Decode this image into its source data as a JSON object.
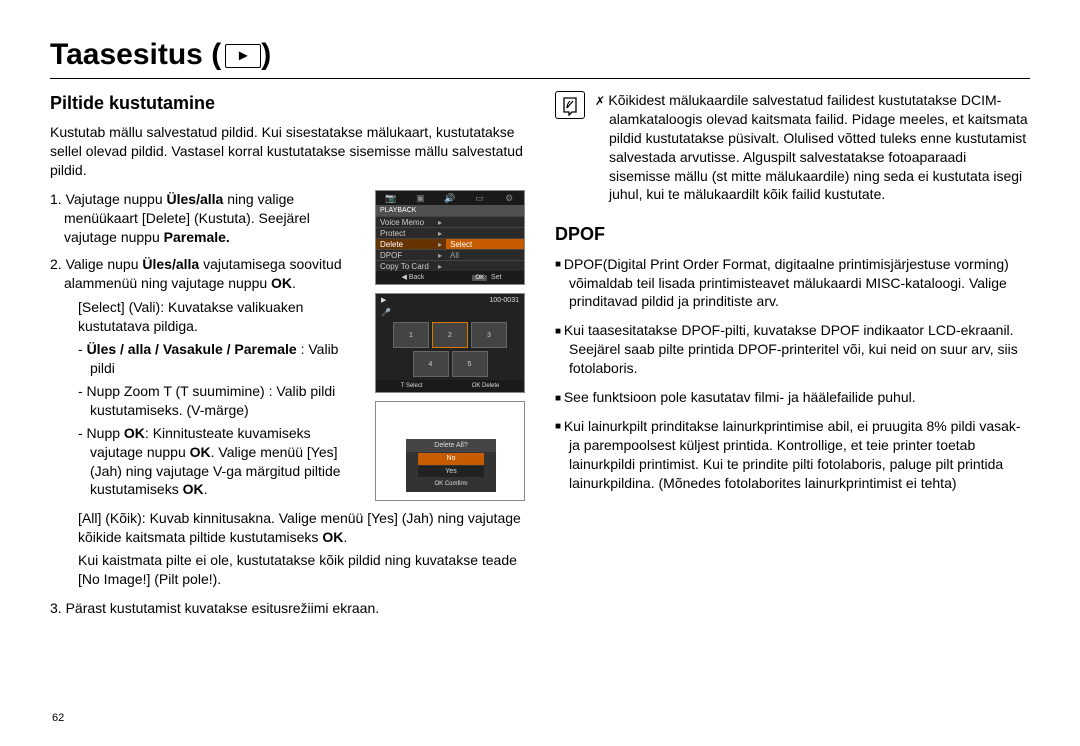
{
  "page": {
    "title": "Taasesitus (",
    "title_close": ")",
    "page_number": "62"
  },
  "left": {
    "heading": "Piltide kustutamine",
    "intro": "Kustutab mällu salvestatud pildid. Kui sisestatakse mälukaart, kustutatakse sellel olevad pildid. Vastasel korral kustutatakse sisemisse mällu salvestatud pildid.",
    "step1_a": "1. Vajutage nuppu ",
    "step1_b": "Üles/alla",
    "step1_c": " ning valige menüükaart [Delete] (Kustuta). Seejärel vajutage nuppu ",
    "step1_d": "Paremale.",
    "step2_a": "2. Valige nupu ",
    "step2_b": "Üles/alla",
    "step2_c": " vajutamisega soovitud alammenüü ning vajutage nuppu ",
    "step2_d": "OK",
    "step2_e": ".",
    "select_label": "[Select] (Vali): Kuvatakse valikuaken kustutatava pildiga.",
    "dash1_a": "-  ",
    "dash1_b": "Üles / alla / Vasakule / Paremale",
    "dash1_c": " : Valib pildi",
    "dash2": "-  Nupp Zoom T (T suumimine) : Valib pildi kustutamiseks. (V-märge)",
    "dash3_a": "-  Nupp ",
    "dash3_b": "OK",
    "dash3_c": ": Kinnitusteate kuvamiseks vajutage nuppu ",
    "dash3_d": "OK",
    "dash3_e": ". Valige menüü [Yes] (Jah) ning vajutage V-ga märgitud piltide kustutamiseks ",
    "dash3_f": "OK",
    "dash3_g": ".",
    "all_label_a": "[All] (Kõik): Kuvab kinnitusakna. Valige menüü [Yes] (Jah) ning vajutage kõikide kaitsmata piltide kustutamiseks ",
    "all_label_b": "OK",
    "all_label_c": ".",
    "all_note": "Kui kaistmata pilte ei ole, kustutatakse kõik pildid ning kuvatakse teade [No Image!] (Pilt pole!).",
    "step3": "3. Pärast kustutamist kuvatakse esitusrežiimi ekraan."
  },
  "shot1": {
    "header": "PLAYBACK",
    "rows": [
      {
        "l": "Voice Memo",
        "r": ""
      },
      {
        "l": "Protect",
        "r": ""
      },
      {
        "l": "Delete",
        "r": "Select",
        "sel": true
      },
      {
        "l": "DPOF",
        "r": "All"
      },
      {
        "l": "Copy To Card",
        "r": ""
      }
    ],
    "foot_back": "Back",
    "foot_set": "Set",
    "foot_ok": "OK"
  },
  "shot2": {
    "counter": "100-0031",
    "foot_select_key": "T",
    "foot_select": "Select",
    "foot_delete_key": "OK",
    "foot_delete": "Delete",
    "thumbs": [
      "1",
      "2",
      "3",
      "4",
      "5"
    ]
  },
  "shot3": {
    "dialog_title": "Delete All?",
    "opt_no": "No",
    "opt_yes": "Yes",
    "foot_key": "OK",
    "foot_label": "Comfirm"
  },
  "right": {
    "note": "Kõikidest mälukaardile salvestatud failidest kustutatakse DCIM-alamkataloogis olevad kaitsmata failid. Pidage meeles, et kaitsmata pildid kustutatakse püsivalt. Olulised võtted tuleks enne kustutamist salvestada arvutisse. Alguspilt salvestatakse fotoaparaadi sisemisse mällu (st mitte mälukaardile) ning seda ei kustutata isegi juhul, kui te mälukaardilt kõik failid kustutate.",
    "heading": "DPOF",
    "p1": "DPOF(Digital Print Order Format, digitaalne printimisjärjestuse vorming) võimaldab teil lisada printimisteavet mälukaardi MISC-kataloogi. Valige prinditavad pildid ja prinditiste arv.",
    "p2": "Kui taasesitatakse DPOF-pilti, kuvatakse DPOF indikaator LCD-ekraanil. Seejärel saab pilte printida DPOF-printeritel või, kui neid on suur arv, siis fotolaboris.",
    "p3": "See funktsioon pole kasutatav filmi- ja häälefailide puhul.",
    "p4": "Kui lainurkpilt prinditakse lainurkprintimise abil, ei pruugita 8% pildi vasak- ja parempoolsest küljest printida. Kontrollige, et teie printer toetab lainurkpildi printimist. Kui te prindite pilti fotolaboris, paluge pilt printida lainurkpildina. (Mõnedes fotolaborites lainurkprintimist ei tehta)"
  }
}
